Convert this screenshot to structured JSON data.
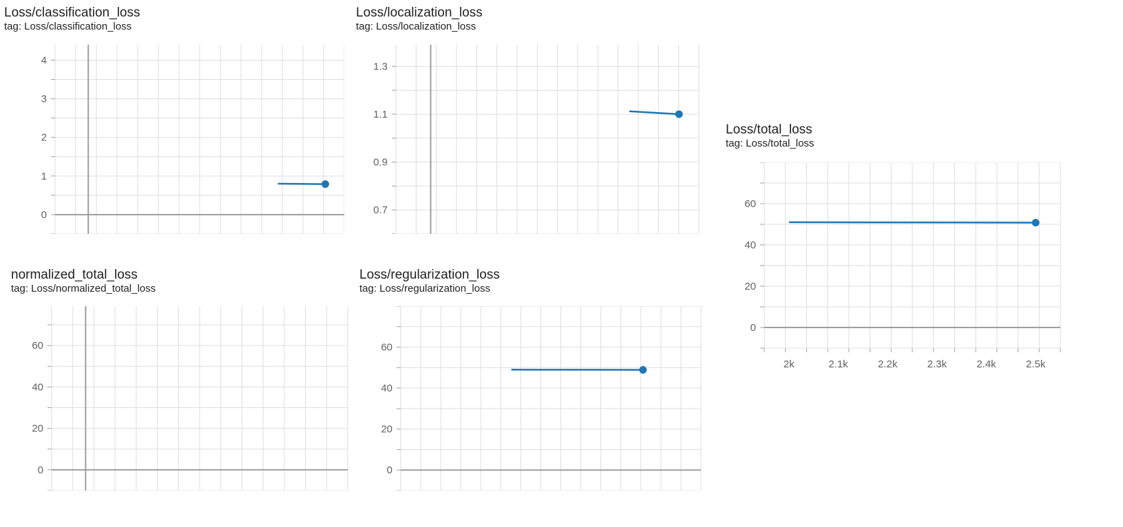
{
  "colors": {
    "series": "#1f77b4",
    "grid": "#dddddd",
    "axis": "#9e9e9e",
    "label": "#616161"
  },
  "charts": [
    {
      "title": "Loss/classification_loss",
      "tag": "tag: Loss/classification_loss"
    },
    {
      "title": "Loss/localization_loss",
      "tag": "tag: Loss/localization_loss"
    },
    {
      "title": "Loss/total_loss",
      "tag": "tag: Loss/total_loss"
    },
    {
      "title": "normalized_total_loss",
      "tag": "tag: Loss/normalized_total_loss"
    },
    {
      "title": "Loss/regularization_loss",
      "tag": "tag: Loss/regularization_loss"
    }
  ],
  "chart_data": [
    {
      "type": "line",
      "title": "Loss/classification_loss",
      "subtitle": "tag: Loss/classification_loss",
      "ylim": [
        -0.5,
        4.4
      ],
      "xlim": [
        -350,
        2700
      ],
      "yticks": [
        0,
        1,
        2,
        3,
        4
      ],
      "xticks": [],
      "xzero_axis": true,
      "series": [
        {
          "x": [
            2000,
            2500
          ],
          "y": [
            0.8,
            0.79
          ]
        }
      ]
    },
    {
      "type": "line",
      "title": "Loss/localization_loss",
      "subtitle": "tag: Loss/localization_loss",
      "ylim": [
        0.6,
        1.39
      ],
      "xlim": [
        -350,
        2700
      ],
      "yticks": [
        0.7,
        0.9,
        1.1,
        1.3
      ],
      "xticks": [],
      "xzero_axis": true,
      "series": [
        {
          "x": [
            2000,
            2500
          ],
          "y": [
            1.112,
            1.1
          ]
        }
      ]
    },
    {
      "type": "line",
      "title": "Loss/total_loss",
      "subtitle": "tag: Loss/total_loss",
      "ylim": [
        -10,
        80
      ],
      "xlim": [
        1950,
        2550
      ],
      "yticks": [
        0,
        20,
        40,
        60
      ],
      "xticks": [
        2000,
        2100,
        2200,
        2300,
        2400,
        2500
      ],
      "xtick_labels": [
        "2k",
        "2.1k",
        "2.2k",
        "2.3k",
        "2.4k",
        "2.5k"
      ],
      "xzero_axis": false,
      "series": [
        {
          "x": [
            2000,
            2500
          ],
          "y": [
            51,
            50.8
          ]
        }
      ]
    },
    {
      "type": "line",
      "title": "normalized_total_loss",
      "subtitle": "tag: Loss/normalized_total_loss",
      "ylim": [
        -10,
        79
      ],
      "xlim": [
        -350,
        2700
      ],
      "yticks": [
        0,
        20,
        40,
        60
      ],
      "xticks": [],
      "xzero_axis": true,
      "series": []
    },
    {
      "type": "line",
      "title": "Loss/regularization_loss",
      "subtitle": "tag: Loss/regularization_loss",
      "ylim": [
        -10,
        80
      ],
      "xlim": [
        1580,
        2720
      ],
      "yticks": [
        0,
        20,
        40,
        60
      ],
      "xticks": [],
      "xzero_axis": false,
      "series": [
        {
          "x": [
            2000,
            2500
          ],
          "y": [
            49,
            48.9
          ]
        }
      ]
    }
  ]
}
